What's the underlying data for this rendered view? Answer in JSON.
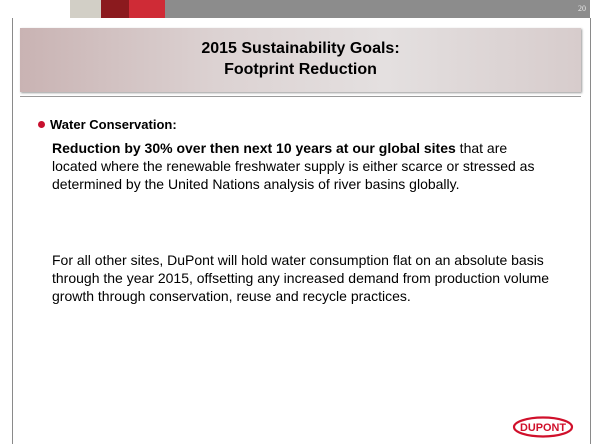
{
  "slide_number": "20",
  "title": {
    "line1": "2015 Sustainability Goals:",
    "line2": "Footprint Reduction"
  },
  "bullet": {
    "heading": "Water Conservation:",
    "paragraph1": {
      "bold": "Reduction by 30% over then next 10 years at our global sites",
      "text": " that are located where the renewable freshwater supply is either scarce or stressed as determined by the United Nations analysis of river basins globally."
    },
    "paragraph2": "For all other sites, DuPont will hold water consumption flat on an absolute  basis through the year 2015, offsetting any increased demand from production volume growth through conservation, reuse and recycle practices."
  },
  "logo": "DUPONT"
}
